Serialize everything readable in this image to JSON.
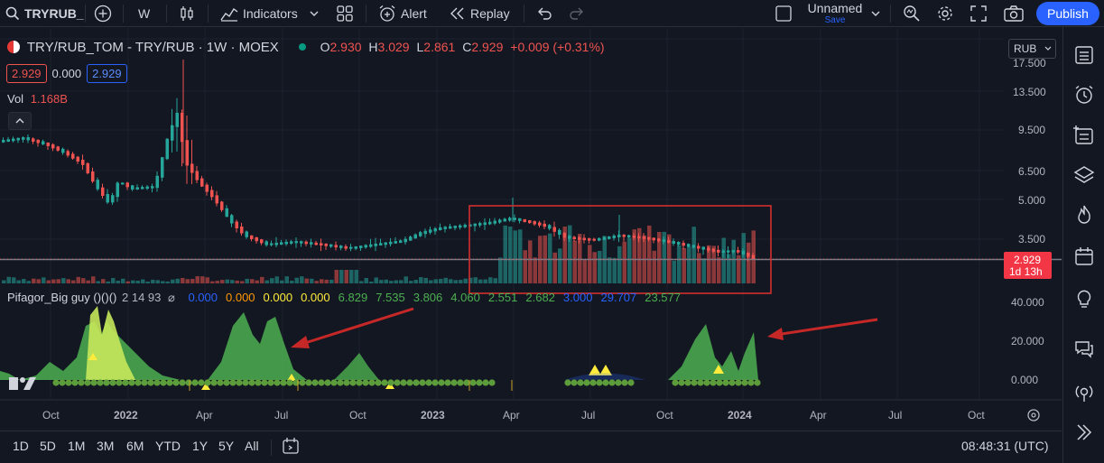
{
  "toolbar": {
    "symbol": "TRYRUB_",
    "interval": "W",
    "indicators": "Indicators",
    "alert": "Alert",
    "replay": "Replay",
    "layout_name": "Unnamed",
    "save_label": "Save",
    "publish": "Publish"
  },
  "legend": {
    "title": "TRY/RUB_TOM - TRY/RUB · 1W · MOEX",
    "o_label": "O",
    "o_value": "2.930",
    "h_label": "H",
    "h_value": "3.029",
    "l_label": "L",
    "l_value": "2.861",
    "c_label": "C",
    "c_value": "2.929",
    "change": "+0.009 (+0.31%)",
    "sell": "2.929",
    "spread": "0.000",
    "buy": "2.929",
    "vol_label": "Vol",
    "vol_value": "1.168B",
    "currency": "RUB"
  },
  "indicator": {
    "name": "Pifagor_Big guy ()()()",
    "params": "2 14 93",
    "values": [
      {
        "text": "0.000",
        "color": "#2962ff"
      },
      {
        "text": "0.000",
        "color": "#ff9800"
      },
      {
        "text": "0.000",
        "color": "#ffeb3b"
      },
      {
        "text": "0.000",
        "color": "#ffeb3b"
      },
      {
        "text": "6.829",
        "color": "#4caf50"
      },
      {
        "text": "7.535",
        "color": "#4caf50"
      },
      {
        "text": "3.806",
        "color": "#4caf50"
      },
      {
        "text": "4.060",
        "color": "#4caf50"
      },
      {
        "text": "2.551",
        "color": "#4caf50"
      },
      {
        "text": "2.682",
        "color": "#4caf50"
      },
      {
        "text": "3.000",
        "color": "#2962ff"
      },
      {
        "text": "29.707",
        "color": "#2962ff"
      },
      {
        "text": "23.577",
        "color": "#4caf50"
      }
    ]
  },
  "price_axis": [
    "17.500",
    "13.500",
    "9.500",
    "6.500",
    "5.000",
    "3.500"
  ],
  "price_tag": {
    "price": "2.929",
    "countdown": "1d 13h"
  },
  "ind_axis": [
    "40.000",
    "20.000",
    "0.000"
  ],
  "time_axis": [
    "Oct",
    "2022",
    "Apr",
    "Jul",
    "Oct",
    "2023",
    "Apr",
    "Jul",
    "Oct",
    "2024",
    "Apr",
    "Jul",
    "Oct"
  ],
  "ranges": [
    "1D",
    "5D",
    "1M",
    "3M",
    "6M",
    "YTD",
    "1Y",
    "5Y",
    "All"
  ],
  "clock": "08:48:31 (UTC)",
  "colors": {
    "up": "#26a69a",
    "down": "#ef5350",
    "accent": "#2962ff",
    "osc": "#4caf50",
    "arrow": "#d32f2f"
  }
}
